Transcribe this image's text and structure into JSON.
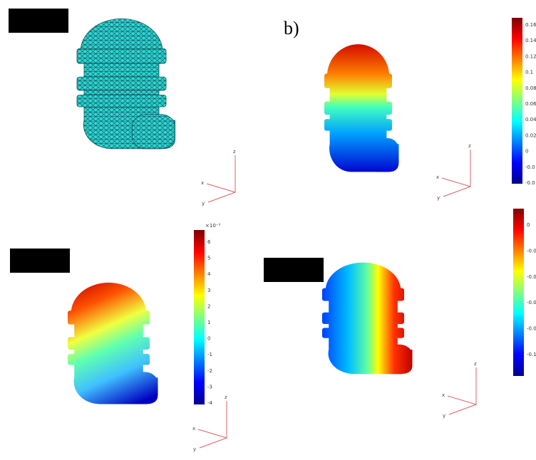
{
  "panel_label": "b)",
  "colorbars": [
    {
      "ticks": [
        "0.16",
        "0.14",
        "0.12",
        "0.1",
        "0.08",
        "0.06",
        "0.04",
        "0.02",
        "0",
        "-0.0",
        "-0.0"
      ]
    },
    {
      "multiplier": "×10⁻³",
      "ticks": [
        "6",
        "5",
        "4",
        "3",
        "2",
        "1",
        "0",
        "-1",
        "-2",
        "-3",
        "-4"
      ]
    },
    {
      "ticks": [
        "0",
        "-0.0",
        "-0.0",
        "-0.0",
        "-0.0",
        "-0.1"
      ]
    }
  ],
  "axes_triads": [
    {
      "x": "x",
      "y": "y",
      "z": "z"
    },
    {
      "x": "x",
      "y": "y",
      "z": "z"
    },
    {
      "x": "x",
      "y": "y",
      "z": "z"
    },
    {
      "x": "x",
      "y": "y",
      "z": "z"
    }
  ]
}
